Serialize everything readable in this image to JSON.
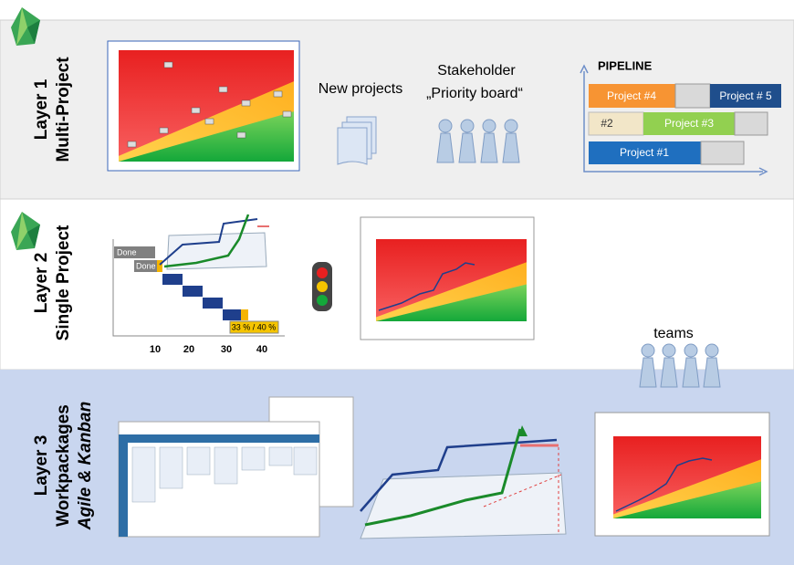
{
  "layers": [
    {
      "number": "Layer 1",
      "title": "Multi-Project"
    },
    {
      "number": "Layer 2",
      "title": "Single Project"
    },
    {
      "number": "Layer 3",
      "title": "Workpackages",
      "subtitle": "Agile & Kanban"
    }
  ],
  "multi_project": {
    "new_projects": "New projects",
    "stakeholder": "Stakeholder",
    "priority_board": "„Priority board“",
    "pipeline": {
      "title": "PIPELINE",
      "projects": [
        "Project #4",
        "Project # 5",
        "#2",
        "Project #3",
        "Project #1"
      ]
    }
  },
  "single_project": {
    "done": [
      "Done",
      "Done"
    ],
    "progress": "33 % / 40 %",
    "axis": [
      "10",
      "20",
      "30",
      "40"
    ]
  },
  "workpackages": {
    "teams": "teams"
  }
}
